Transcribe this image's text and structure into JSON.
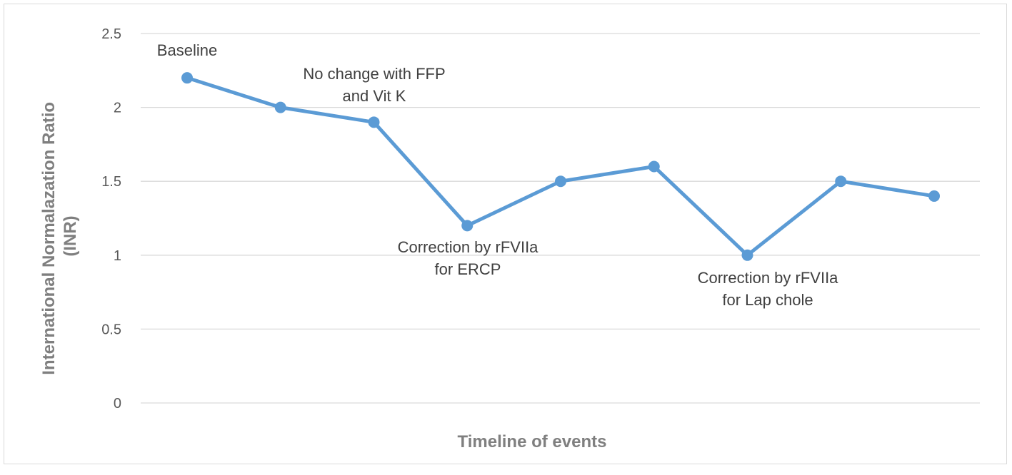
{
  "chart_data": {
    "type": "line",
    "title": "",
    "xlabel": "Timeline of events",
    "ylabel_lines": [
      "International Normalazation Ratio",
      "(INR)"
    ],
    "ylim": [
      0,
      2.5
    ],
    "yticks": [
      "0",
      "0.5",
      "1",
      "1.5",
      "2",
      "2.5"
    ],
    "grid": true,
    "series": [
      {
        "values": [
          2.2,
          2.0,
          1.9,
          1.2,
          1.5,
          1.6,
          1.0,
          1.5,
          1.4
        ]
      }
    ],
    "annotations": [
      {
        "point": 0,
        "lines": [
          "Baseline"
        ]
      },
      {
        "point": 2,
        "lines": [
          "No change with FFP",
          "and Vit K"
        ]
      },
      {
        "point": 3,
        "lines": [
          "Correction by rFVIIa",
          "for ERCP"
        ]
      },
      {
        "point": 6,
        "lines": [
          "Correction by rFVIIa",
          "for Lap chole"
        ]
      }
    ]
  },
  "colors": {
    "line": "#5b9bd5",
    "grid": "#d9d9d9",
    "tick_text": "#595959",
    "axis_title": "#7f7f7f",
    "annotation_text": "#404040"
  }
}
